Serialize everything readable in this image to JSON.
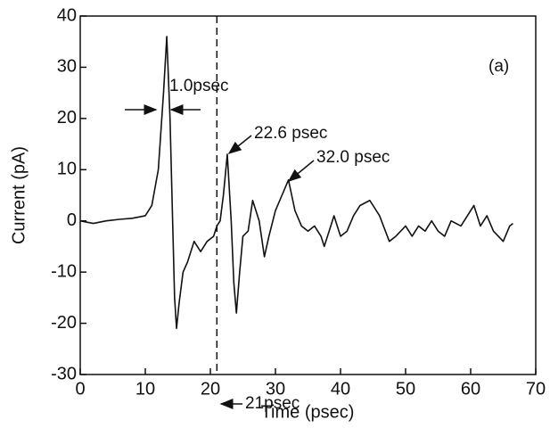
{
  "chart_data": {
    "type": "line",
    "x_label": "Time (psec)",
    "y_label": "Current (pA)",
    "xlim": [
      0,
      70
    ],
    "ylim": [
      -30,
      40
    ],
    "xticks": [
      0,
      10,
      20,
      30,
      40,
      50,
      60,
      70
    ],
    "yticks": [
      -30,
      -20,
      -10,
      0,
      10,
      20,
      30,
      40
    ],
    "vline": 21,
    "annotations": [
      "(a)",
      "1.0psec",
      "22.6 psec",
      "32.0 psec",
      "21psec"
    ],
    "series": [
      {
        "color": "#111111",
        "x": [
          0,
          2,
          4,
          6,
          8,
          10,
          11,
          12,
          12.8,
          13.3,
          13.8,
          14.2,
          14.5,
          14.8,
          15.2,
          15.8,
          16.5,
          17.5,
          18.5,
          19.5,
          20.5,
          21,
          21.5,
          22,
          22.6,
          23.2,
          23.6,
          24,
          24.5,
          25,
          25.8,
          26.5,
          27.5,
          28.3,
          29,
          30,
          31,
          32,
          33,
          34,
          35,
          36,
          37,
          37.5,
          38,
          39,
          40,
          41,
          42,
          43,
          44.5,
          46,
          47.5,
          48.5,
          50,
          51,
          52,
          53,
          54,
          55,
          56,
          57,
          58.5,
          59.5,
          60.5,
          61.5,
          62.5,
          63.5,
          65,
          66,
          66.5
        ],
        "values": [
          0,
          -0.5,
          0,
          0.3,
          0.5,
          1,
          3,
          10,
          25,
          36,
          20,
          0,
          -15,
          -21,
          -16,
          -10,
          -8,
          -4,
          -6,
          -4,
          -3,
          -1,
          0,
          5,
          13,
          0,
          -12,
          -18,
          -10,
          -3,
          -2,
          4,
          0,
          -7,
          -3,
          2,
          5,
          8,
          2,
          -1,
          -2,
          -1,
          -3,
          -5,
          -3,
          1,
          -3,
          -2,
          1,
          3,
          4,
          1,
          -4,
          -3,
          -1,
          -3,
          -1,
          -2,
          0,
          -2,
          -3,
          0,
          -1,
          1,
          3,
          -1,
          1,
          -2,
          -4,
          -1,
          -0.5
        ]
      }
    ]
  }
}
